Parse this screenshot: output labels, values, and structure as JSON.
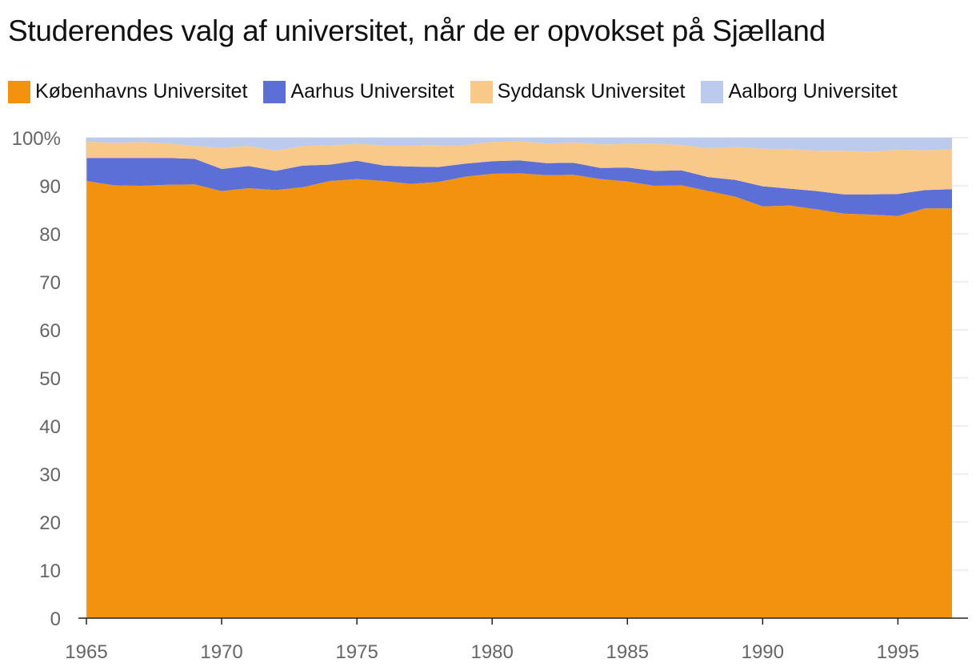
{
  "chart_data": {
    "type": "area",
    "stacked": true,
    "title": "Studerendes valg af universitet, når de er opvokset på Sjælland",
    "xlabel": "",
    "ylabel": "",
    "x": [
      1965,
      1966,
      1967,
      1968,
      1969,
      1970,
      1971,
      1972,
      1973,
      1974,
      1975,
      1976,
      1977,
      1978,
      1979,
      1980,
      1981,
      1982,
      1983,
      1984,
      1985,
      1986,
      1987,
      1988,
      1989,
      1990,
      1991,
      1992,
      1993,
      1994,
      1995,
      1996,
      1997
    ],
    "xlim": [
      1965,
      1997
    ],
    "ylim": [
      0,
      100
    ],
    "x_ticks": [
      "1965",
      "1970",
      "1975",
      "1980",
      "1985",
      "1990",
      "1995"
    ],
    "y_ticks": [
      "0",
      "10",
      "20",
      "30",
      "40",
      "50",
      "60",
      "70",
      "80",
      "90",
      "100%"
    ],
    "grid": "horizontal",
    "legend_position": "top-left",
    "series": [
      {
        "name": "Københavns Universitet",
        "color": "#f2920e",
        "values": [
          91.0,
          90.1,
          90.0,
          90.2,
          90.3,
          88.9,
          89.5,
          89.1,
          89.7,
          91.0,
          91.4,
          91.0,
          90.4,
          90.8,
          91.9,
          92.5,
          92.6,
          92.2,
          92.3,
          91.4,
          90.9,
          90.0,
          90.1,
          88.9,
          87.7,
          85.7,
          85.9,
          85.1,
          84.2,
          84.0,
          83.7,
          85.3,
          85.3
        ]
      },
      {
        "name": "Aarhus Universitet",
        "color": "#5b6fd6",
        "values": [
          4.8,
          5.7,
          5.8,
          5.6,
          5.3,
          4.6,
          4.6,
          4.0,
          4.5,
          3.4,
          3.8,
          3.2,
          3.6,
          3.1,
          2.7,
          2.6,
          2.7,
          2.5,
          2.5,
          2.3,
          2.9,
          3.1,
          3.1,
          2.9,
          3.5,
          4.2,
          3.5,
          3.8,
          4.0,
          4.2,
          4.6,
          3.8,
          4.0
        ]
      },
      {
        "name": "Syddansk Universitet",
        "color": "#f9c98a",
        "values": [
          3.4,
          3.1,
          3.3,
          3.0,
          2.7,
          4.4,
          4.2,
          4.2,
          4.1,
          4.0,
          3.5,
          4.2,
          4.4,
          4.6,
          3.9,
          4.0,
          4.0,
          4.1,
          4.2,
          4.9,
          4.9,
          5.7,
          5.3,
          6.0,
          6.9,
          7.8,
          8.2,
          8.4,
          9.1,
          8.9,
          9.2,
          8.3,
          8.3
        ]
      },
      {
        "name": "Aalborg Universitet",
        "color": "#bccaee",
        "values": [
          0.8,
          1.1,
          0.9,
          1.2,
          1.7,
          2.1,
          1.7,
          2.7,
          1.7,
          1.6,
          1.3,
          1.6,
          1.6,
          1.5,
          1.5,
          0.9,
          0.7,
          1.2,
          1.0,
          1.4,
          1.3,
          1.2,
          1.5,
          2.2,
          1.9,
          2.3,
          2.4,
          2.7,
          2.7,
          2.9,
          2.5,
          2.6,
          2.4
        ]
      }
    ]
  }
}
